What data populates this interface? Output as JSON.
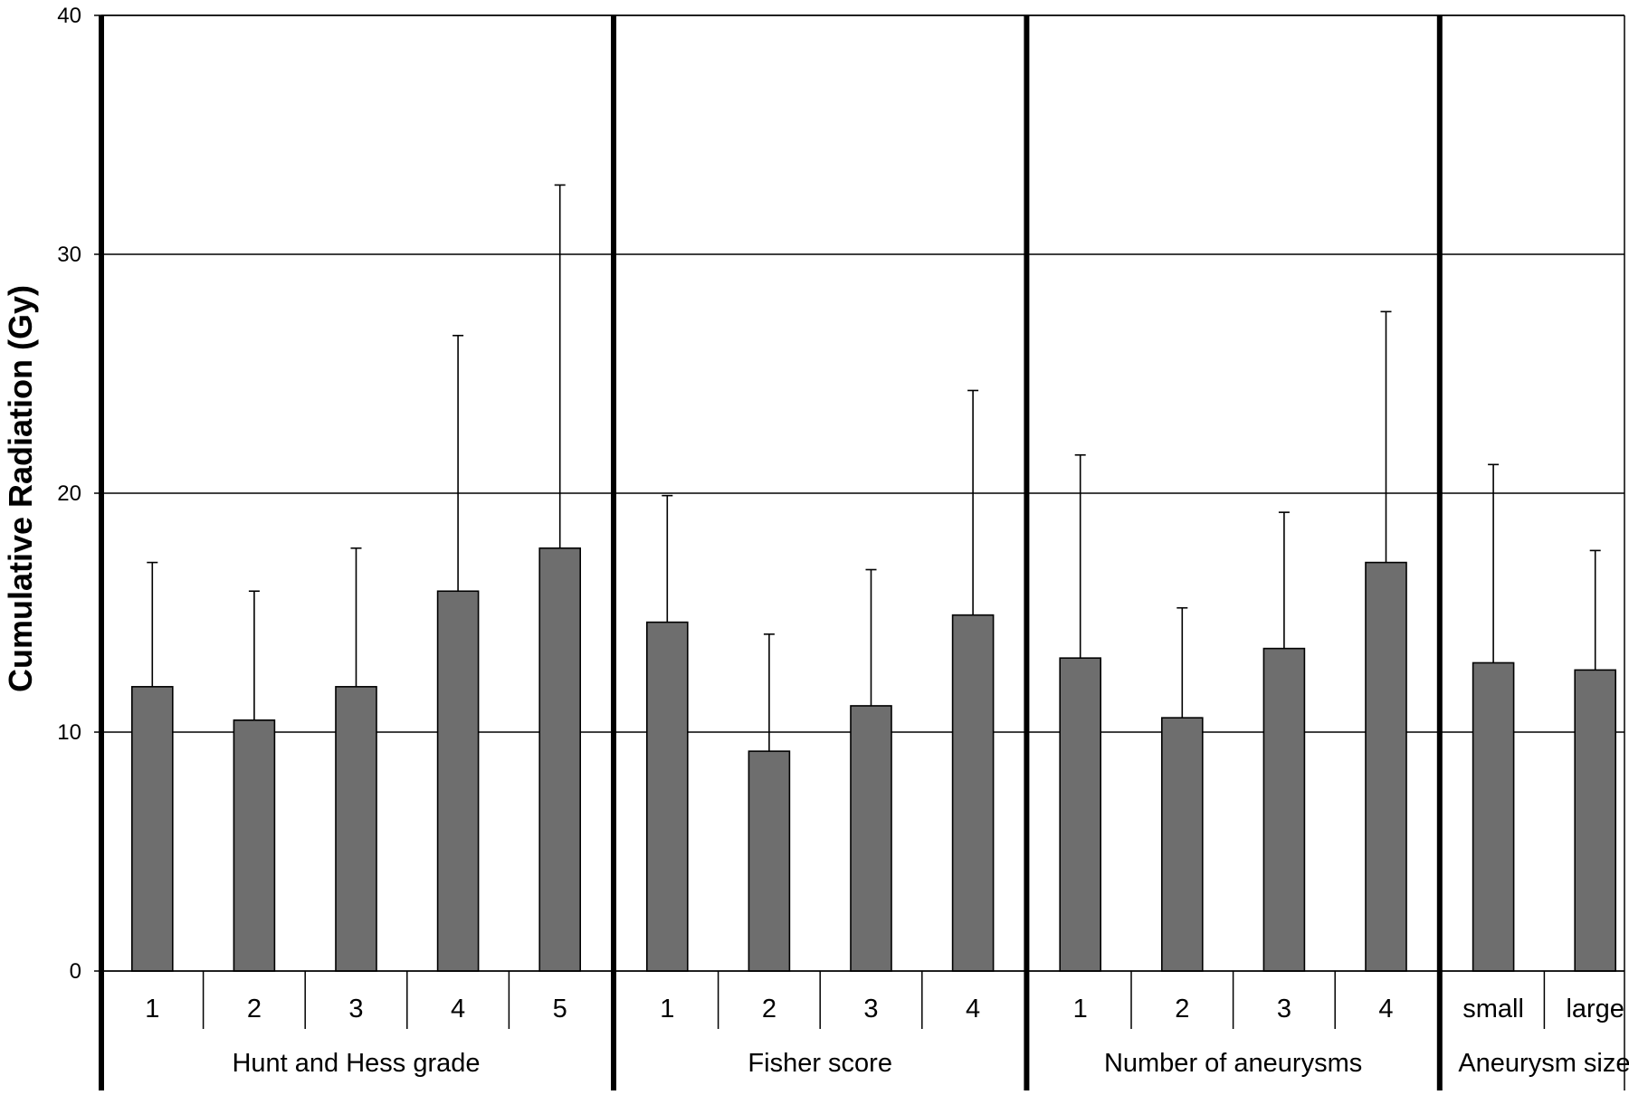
{
  "chart_data": {
    "type": "bar",
    "title": "",
    "ylabel": "Cumulative Radiation (Gy)",
    "ylim": [
      0,
      40
    ],
    "yticks": [
      0,
      10,
      20,
      30,
      40
    ],
    "grid": true,
    "bar_color": "#6e6e6e",
    "groups": [
      {
        "name": "Hunt and Hess grade",
        "categories": [
          "1",
          "2",
          "3",
          "4",
          "5"
        ],
        "values": [
          11.9,
          10.5,
          11.9,
          15.9,
          17.7
        ],
        "error_upper": [
          17.1,
          15.9,
          17.7,
          26.6,
          32.9
        ]
      },
      {
        "name": "Fisher score",
        "categories": [
          "1",
          "2",
          "3",
          "4"
        ],
        "values": [
          14.6,
          9.2,
          11.1,
          14.9
        ],
        "error_upper": [
          19.9,
          14.1,
          16.8,
          24.3
        ]
      },
      {
        "name": "Number of aneurysms",
        "categories": [
          "1",
          "2",
          "3",
          "4"
        ],
        "values": [
          13.1,
          10.6,
          13.5,
          17.1
        ],
        "error_upper": [
          21.6,
          15.2,
          19.2,
          27.6
        ]
      },
      {
        "name": "Aneurysm size",
        "categories": [
          "small",
          "large"
        ],
        "values": [
          12.9,
          12.6
        ],
        "error_upper": [
          21.2,
          17.6
        ]
      }
    ]
  }
}
